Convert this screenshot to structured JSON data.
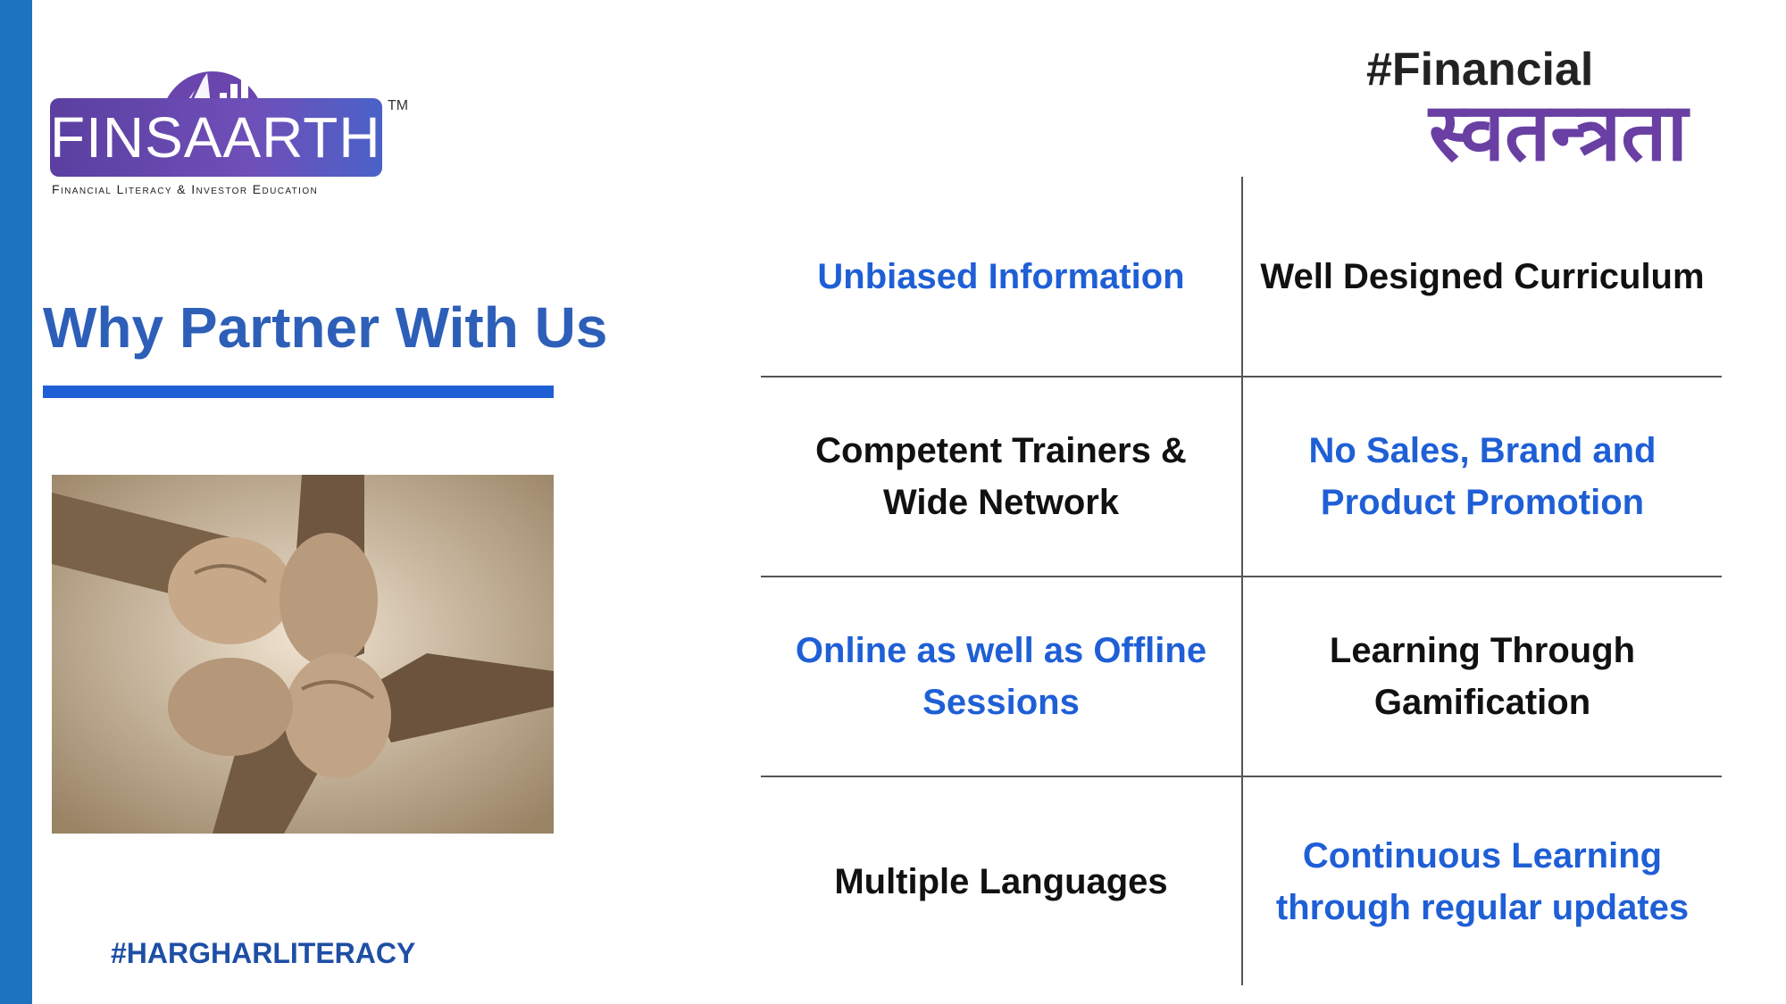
{
  "colors": {
    "accent_blue": "#1f5fd6",
    "side_bar": "#1e73be",
    "heading": "#2d5fb8",
    "logo_purple": "#6a3fa3"
  },
  "logo": {
    "name": "FINSAARTHI",
    "tm": "TM",
    "tagline": "Financial Literacy & Investor Education",
    "icon": "book-chart-icon"
  },
  "campaign": {
    "english": "#Financial",
    "hindi": "स्वतन्त्रता"
  },
  "heading": "Why Partner With Us",
  "photo": {
    "icon": "joined-hands-photo"
  },
  "hashtag": "#HARGHARLITERACY",
  "features": [
    {
      "text": "Unbiased Information",
      "style": "blue"
    },
    {
      "text": "Well Designed Curriculum",
      "style": "dark"
    },
    {
      "text": "Competent Trainers & Wide Network",
      "style": "dark"
    },
    {
      "text": "No Sales, Brand and Product Promotion",
      "style": "blue"
    },
    {
      "text": "Online as well as Offline Sessions",
      "style": "blue"
    },
    {
      "text": "Learning Through Gamification",
      "style": "dark"
    },
    {
      "text": "Multiple Languages",
      "style": "dark"
    },
    {
      "text": "Continuous Learning through regular updates",
      "style": "blue"
    }
  ]
}
